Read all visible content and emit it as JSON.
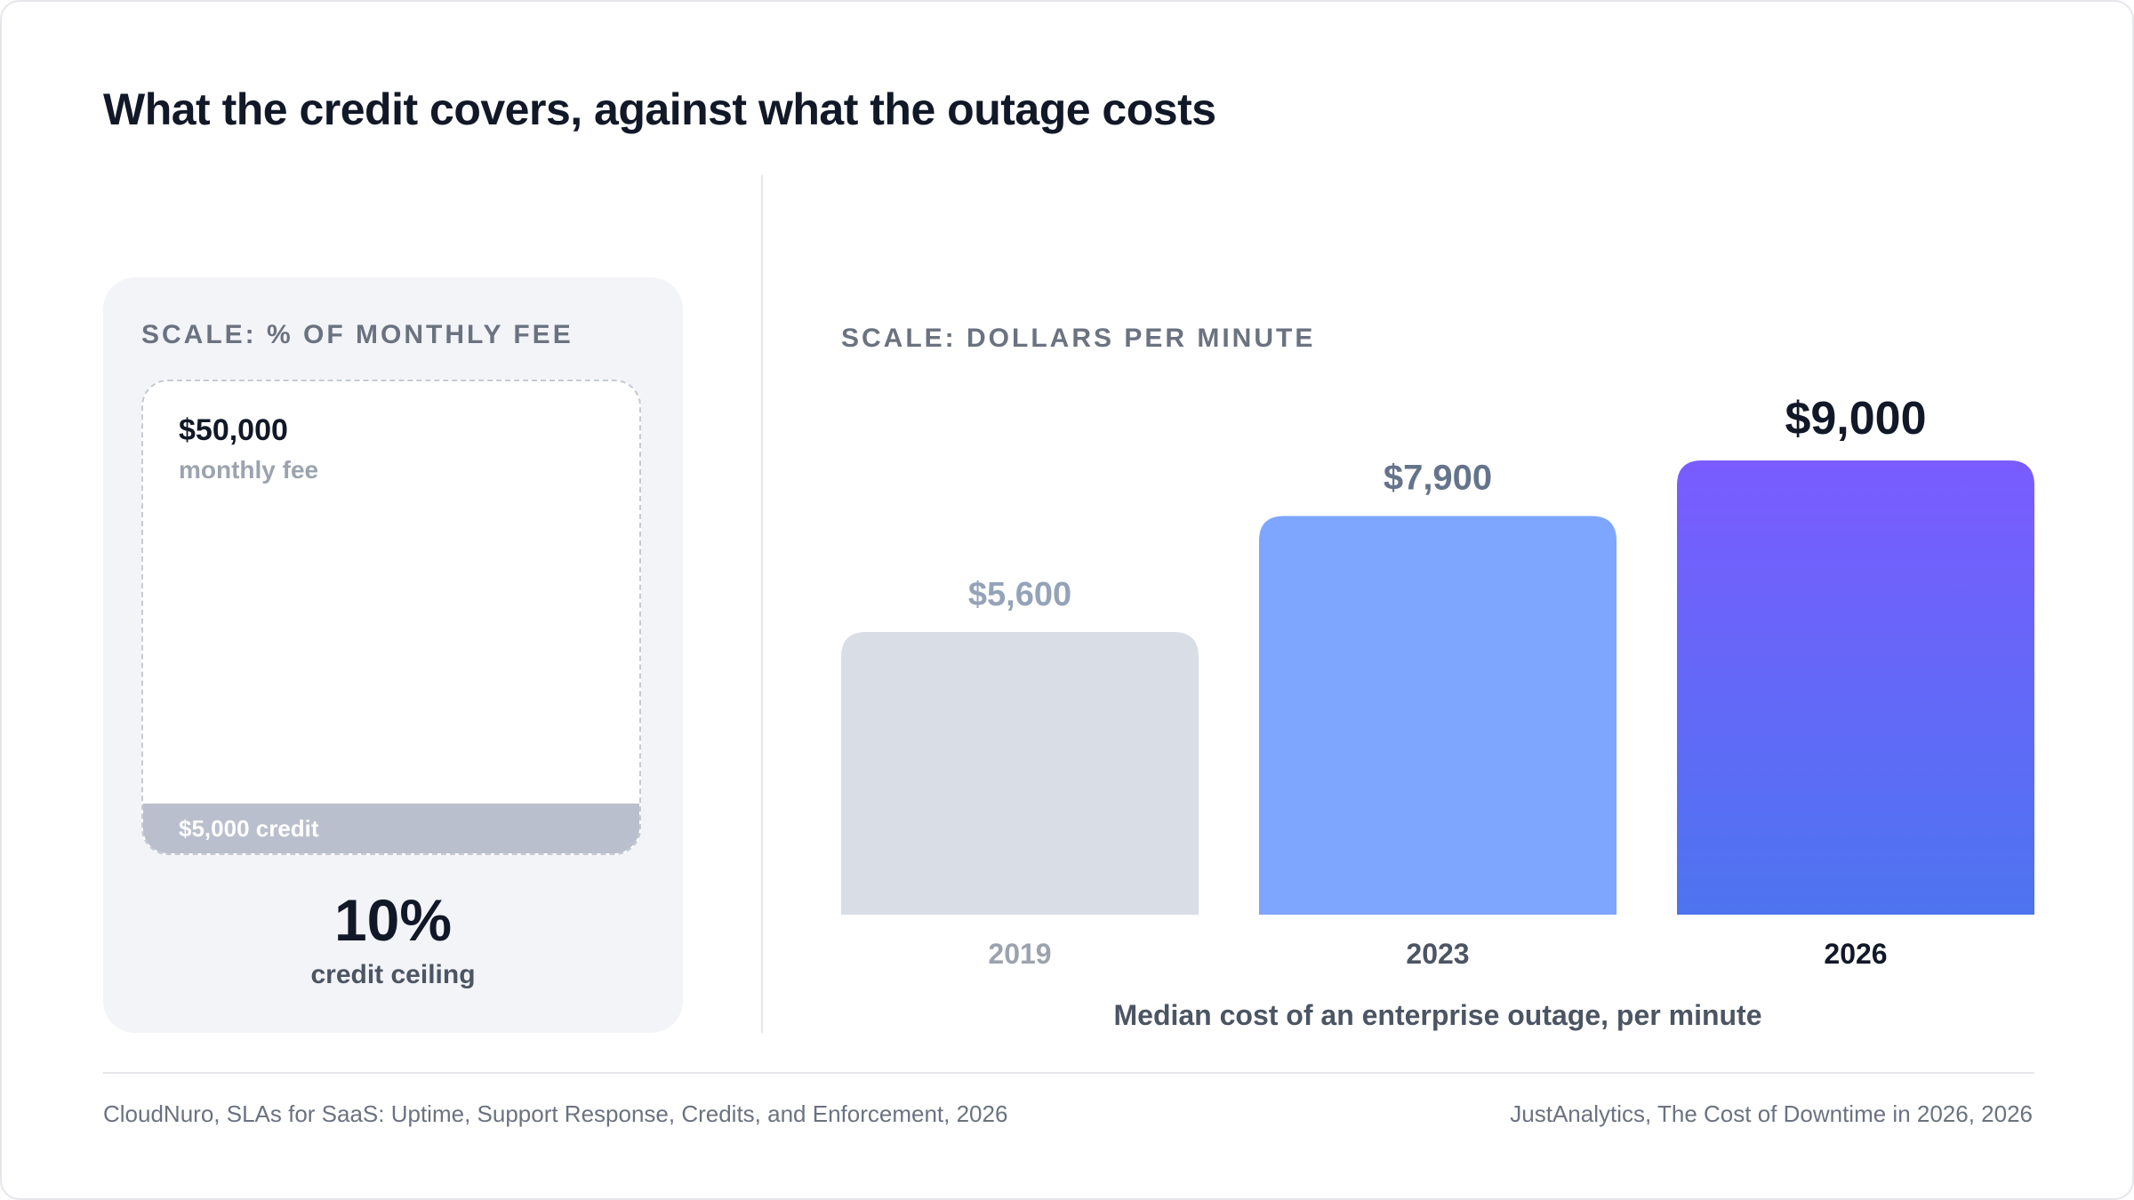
{
  "title": "What the credit covers, against what the outage costs",
  "left_panel": {
    "scale_label": "SCALE: % OF MONTHLY FEE",
    "fee_amount": "$50,000",
    "fee_label": "monthly fee",
    "credit_label": "$5,000 credit",
    "credit_fraction": 0.1,
    "percent": "10%",
    "percent_label": "credit ceiling"
  },
  "chart_data": {
    "type": "bar",
    "scale_label": "SCALE: DOLLARS PER MINUTE",
    "categories": [
      "2019",
      "2023",
      "2026"
    ],
    "values": [
      5600,
      7900,
      9000
    ],
    "value_labels": [
      "$5,600",
      "$7,900",
      "$9,000"
    ],
    "xlabel": "Median cost of an enterprise outage, per minute",
    "ylim": [
      0,
      9000
    ],
    "grid": false,
    "colors": [
      "#d9dde6",
      "#7ea6ff",
      "#6a5cf5"
    ]
  },
  "sources": {
    "left": "CloudNuro, SLAs for SaaS: Uptime, Support Response, Credits, and Enforcement, 2026",
    "right": "JustAnalytics, The Cost of Downtime in 2026, 2026"
  }
}
